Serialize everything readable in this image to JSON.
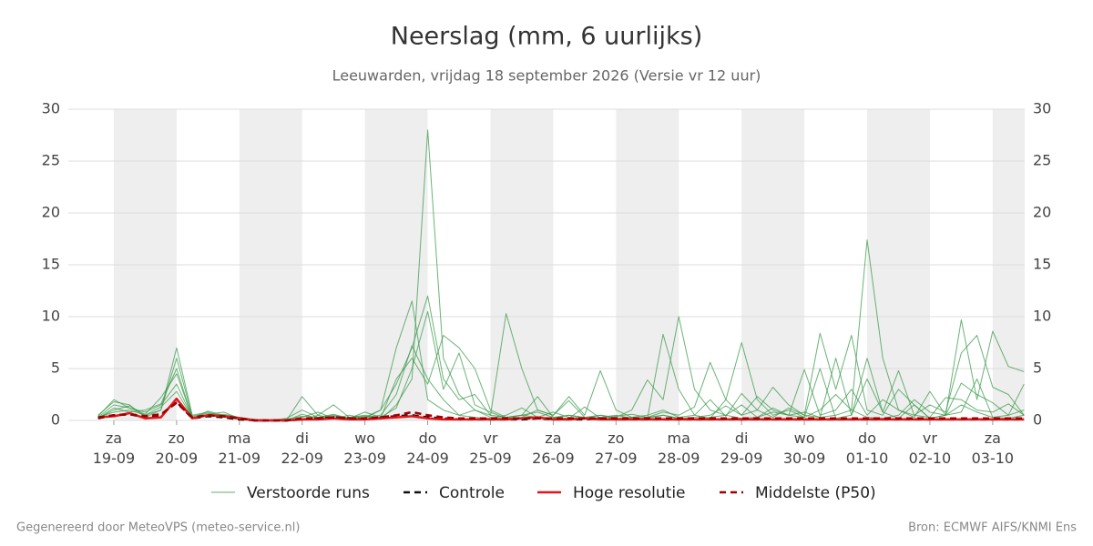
{
  "chart_data": {
    "type": "line",
    "title": "Neerslag (mm, 6 uurlijks)",
    "subtitle": "Leeuwarden, vrijdag 18 september 2026 (Versie vr 12 uur)",
    "footer_left": "Gegenereerd door MeteoVPS (meteo-service.nl)",
    "footer_right": "Bron: ECMWF AIFS/KNMI Ens",
    "x": [
      -0.25,
      0,
      0.25,
      0.5,
      0.75,
      1,
      1.25,
      1.5,
      1.75,
      2,
      2.25,
      2.5,
      2.75,
      3,
      3.25,
      3.5,
      3.75,
      4,
      4.25,
      4.5,
      4.75,
      5,
      5.25,
      5.5,
      5.75,
      6,
      6.25,
      6.5,
      6.75,
      7,
      7.25,
      7.5,
      7.75,
      8,
      8.25,
      8.5,
      8.75,
      9,
      9.25,
      9.5,
      9.75,
      10,
      10.25,
      10.5,
      10.75,
      11,
      11.25,
      11.5,
      11.75,
      12,
      12.25,
      12.5,
      12.75,
      13,
      13.25,
      13.5,
      13.75,
      14,
      14.25,
      14.5
    ],
    "xlim": [
      -0.725,
      14.51
    ],
    "xticks": [
      {
        "value": 0,
        "label": "za\n19-09"
      },
      {
        "value": 1,
        "label": "zo\n20-09"
      },
      {
        "value": 2,
        "label": "ma\n21-09"
      },
      {
        "value": 3,
        "label": "di\n22-09"
      },
      {
        "value": 4,
        "label": "wo\n23-09"
      },
      {
        "value": 5,
        "label": "do\n24-09"
      },
      {
        "value": 6,
        "label": "vr\n25-09"
      },
      {
        "value": 7,
        "label": "za\n26-09"
      },
      {
        "value": 8,
        "label": "zo\n27-09"
      },
      {
        "value": 9,
        "label": "ma\n28-09"
      },
      {
        "value": 10,
        "label": "di\n29-09"
      },
      {
        "value": 11,
        "label": "wo\n30-09"
      },
      {
        "value": 12,
        "label": "do\n01-10"
      },
      {
        "value": 13,
        "label": "vr\n02-10"
      },
      {
        "value": 14,
        "label": "za\n03-10"
      }
    ],
    "ylim": [
      0,
      30
    ],
    "yticks": [
      0,
      5,
      10,
      15,
      20,
      25,
      30
    ],
    "grid": true,
    "legend": "bottom",
    "series": [
      {
        "name": "Verstoorde runs",
        "color": "#3a9a4a",
        "style": "thin",
        "runs": [
          [
            0.3,
            1.5,
            1.2,
            0.8,
            1.5,
            3.5,
            0.3,
            0.5,
            0.6,
            0.3,
            0.1,
            0,
            0,
            0,
            0.5,
            0.2,
            0.3,
            0.4,
            0.1,
            1.5,
            4,
            28,
            6,
            2.5,
            1,
            0.3,
            0.2,
            0.5,
            0.3,
            0.2,
            0.5,
            0.3,
            0.2,
            0.1,
            0.3,
            0.2,
            0.5,
            0.2,
            0.1,
            0.3,
            0.5,
            0.2,
            0.3,
            1.2,
            0.5,
            0.8,
            0.3,
            0.5,
            1,
            0.3,
            0.2,
            0.5,
            2,
            0.8,
            0.5,
            1.5,
            0.8,
            0.3,
            0.2,
            0.5
          ],
          [
            0.2,
            1,
            1.4,
            0.5,
            1,
            7,
            0.5,
            0.8,
            0.4,
            0.2,
            0,
            0,
            0.2,
            1,
            0.3,
            0.5,
            0.2,
            0.3,
            1,
            3.5,
            7,
            12,
            4,
            2,
            2.5,
            0.5,
            10.3,
            5,
            1,
            0.5,
            2.3,
            0.5,
            4.8,
            1,
            0.3,
            0.2,
            8.3,
            3,
            0.5,
            0.2,
            2,
            7.5,
            2,
            0.5,
            1,
            0.3,
            5,
            0.2,
            0.5,
            6,
            0.8,
            0.2,
            1.5,
            0.2,
            0.5,
            0.8,
            4,
            0.3,
            0.5,
            1
          ],
          [
            0.4,
            2,
            1.2,
            0.6,
            2.2,
            4.5,
            0.3,
            0.6,
            0.8,
            0.2,
            0,
            0,
            0,
            0.3,
            0.8,
            0.2,
            0.5,
            0.2,
            1,
            7,
            11.5,
            2,
            1,
            0.5,
            0.3,
            0.2,
            0.5,
            1.2,
            0.3,
            0.8,
            0.3,
            0.2,
            0.5,
            0.3,
            1,
            3.9,
            2,
            10,
            3,
            1,
            0.5,
            1.5,
            0.3,
            0.8,
            0.5,
            0.3,
            1,
            2.5,
            1,
            17.4,
            6,
            1,
            0.5,
            0.3,
            2.2,
            2,
            1,
            0.8,
            1.6,
            0.5
          ],
          [
            0.2,
            1.2,
            0.8,
            1,
            1.6,
            5,
            0.2,
            0.9,
            0.5,
            0.3,
            0,
            0,
            0,
            2.3,
            0.5,
            1.5,
            0.3,
            0.5,
            0.2,
            4,
            6,
            3.5,
            8.2,
            7,
            5,
            1,
            0.3,
            0.5,
            2.3,
            0.3,
            0.2,
            1.3,
            0.2,
            0.4,
            0.6,
            0.3,
            0.8,
            0.5,
            1.3,
            5.6,
            2,
            0.5,
            1,
            3.2,
            1.5,
            0.5,
            8.4,
            3,
            8.2,
            1,
            0.5,
            3,
            1.5,
            0.2,
            0.5,
            9.7,
            2,
            8.6,
            5.2,
            4.7
          ],
          [
            0.5,
            1.8,
            1.5,
            0.3,
            1,
            6,
            0.4,
            0.7,
            0.3,
            0.1,
            0,
            0,
            0,
            0.6,
            0.2,
            0.4,
            0.2,
            0.8,
            0.3,
            1.2,
            5,
            10.5,
            3,
            6.5,
            1.5,
            0.8,
            0.2,
            0.3,
            1,
            0.5,
            1.9,
            0.3,
            0.5,
            0.2,
            0.3,
            0.5,
            1,
            0.3,
            0.5,
            2,
            0.4,
            2.6,
            1,
            0.3,
            1.2,
            0.5,
            0.3,
            6,
            0.5,
            4,
            0.8,
            4.8,
            0.5,
            1.5,
            0.8,
            6.5,
            8.2,
            3.2,
            2.5,
            0.5
          ],
          [
            0.3,
            0.8,
            1,
            0.5,
            1.3,
            2.8,
            0.3,
            0.5,
            0.4,
            0.2,
            0,
            0,
            0.1,
            0.4,
            0.3,
            0.6,
            0.2,
            0.3,
            0.5,
            2.5,
            7.2,
            4,
            2,
            0.5,
            1,
            0.5,
            0.3,
            0.5,
            0.8,
            0.3,
            0.5,
            0.2,
            0.3,
            0.5,
            0.2,
            0.3,
            0.5,
            0.2,
            0.3,
            0.5,
            1.4,
            0.5,
            2.3,
            1,
            0.5,
            4.9,
            0.5,
            1,
            3,
            0.5,
            2,
            1,
            0.3,
            2.8,
            0.5,
            3.6,
            2.5,
            1.7,
            0.5,
            3.5
          ]
        ]
      },
      {
        "name": "Controle",
        "color": "#111111",
        "style": "dashed",
        "values": [
          0.2,
          0.5,
          0.6,
          0.3,
          0.5,
          1.8,
          0.2,
          0.4,
          0.3,
          0.1,
          0,
          0,
          0,
          0.1,
          0.2,
          0.3,
          0.2,
          0.1,
          0.3,
          0.4,
          0.5,
          0.3,
          0.2,
          0.1,
          0.1,
          0.1,
          0.1,
          0.1,
          0.2,
          0.1,
          0.1,
          0.1,
          0.2,
          0.1,
          0.1,
          0.1,
          0.1,
          0.1,
          0.1,
          0.1,
          0.1,
          0.1,
          0.1,
          0.1,
          0.1,
          0.1,
          0.1,
          0.1,
          0.1,
          0.1,
          0.1,
          0.1,
          0.1,
          0.1,
          0.1,
          0.1,
          0.1,
          0.1,
          0.1,
          0.1
        ]
      },
      {
        "name": "Hoge resolutie",
        "color": "#e3141c",
        "style": "solid",
        "values": [
          0.3,
          0.4,
          0.7,
          0.2,
          0.3,
          2.1,
          0.2,
          0.5,
          0.4,
          0.2,
          0,
          0,
          0,
          0.1,
          0.1,
          0.2,
          0.1,
          0.1,
          0.2,
          0.3,
          0.4,
          0.2,
          0.1,
          0.1,
          0.1,
          0.1,
          0.1,
          0.2,
          0.3,
          0.1,
          0.1,
          0.2,
          0.1,
          0.1,
          0.1,
          0.1,
          0.1,
          0.1,
          0.1,
          0.1,
          0.1,
          0.1,
          0.1,
          0.1,
          0.1,
          0.1,
          0.1,
          0.1,
          0.1,
          0.1,
          0.1,
          0.1,
          0.1,
          0.1,
          0.1,
          0.1,
          0.1,
          0.1,
          0.1,
          0.1
        ]
      },
      {
        "name": "Middelste (P50)",
        "color": "#a00000",
        "style": "dashed",
        "values": [
          0.3,
          0.5,
          0.6,
          0.4,
          0.6,
          1.7,
          0.3,
          0.5,
          0.4,
          0.2,
          0,
          0,
          0,
          0.2,
          0.2,
          0.3,
          0.2,
          0.2,
          0.3,
          0.5,
          0.8,
          0.5,
          0.3,
          0.2,
          0.2,
          0.2,
          0.2,
          0.2,
          0.2,
          0.2,
          0.2,
          0.2,
          0.2,
          0.2,
          0.2,
          0.2,
          0.2,
          0.2,
          0.2,
          0.2,
          0.2,
          0.2,
          0.2,
          0.2,
          0.2,
          0.2,
          0.2,
          0.2,
          0.2,
          0.2,
          0.2,
          0.2,
          0.2,
          0.2,
          0.2,
          0.2,
          0.2,
          0.2,
          0.2,
          0.2
        ]
      }
    ]
  }
}
